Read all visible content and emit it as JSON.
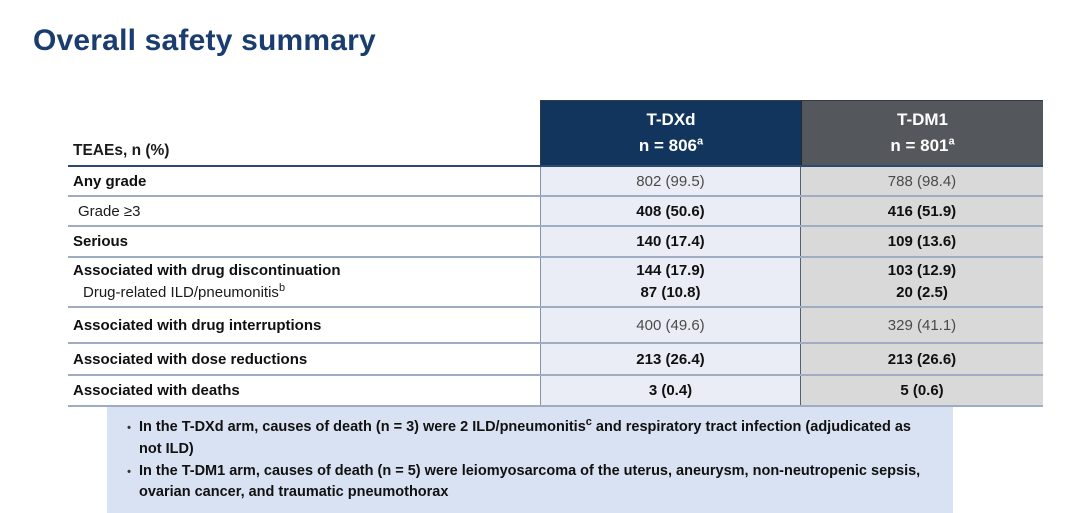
{
  "page": {
    "title": "Overall safety summary"
  },
  "table": {
    "corner_label": "TEAEs, n (%)",
    "columns": [
      {
        "name": "T-DXd",
        "n": "n = 806",
        "n_sup": "a"
      },
      {
        "name": "T-DM1",
        "n": "n = 801",
        "n_sup": "a"
      }
    ],
    "rows": [
      {
        "label": "Any grade",
        "values": [
          "802 (99.5)",
          "788 (98.4)"
        ]
      },
      {
        "label": "Grade ≥3",
        "values": [
          "408 (50.6)",
          "416 (51.9)"
        ]
      },
      {
        "label": "Serious",
        "values": [
          "140 (17.4)",
          "109 (13.6)"
        ]
      },
      {
        "label": "Associated with drug discontinuation",
        "values": [
          "144 (17.9)",
          "103 (12.9)"
        ],
        "sub_label": "Drug-related ILD/pneumonitis",
        "sub_label_sup": "b",
        "sub_values": [
          "87 (10.8)",
          "20 (2.5)"
        ]
      },
      {
        "label": "Associated with drug interruptions",
        "values": [
          "400 (49.6)",
          "329 (41.1)"
        ]
      },
      {
        "label": "Associated with dose reductions",
        "values": [
          "213 (26.4)",
          "213 (26.6)"
        ]
      },
      {
        "label": "Associated with deaths",
        "values": [
          "3 (0.4)",
          "5 (0.6)"
        ]
      }
    ]
  },
  "callout": {
    "marker": "•",
    "bullet1_pre": "In the T-DXd arm, causes of death (n = 3) were 2 ILD/pneumonitis",
    "bullet1_sup": "c",
    "bullet1_post": " and respiratory tract infection (adjudicated as not ILD)",
    "bullet2": "In the T-DM1 arm, causes of death (n = 5) were leiomyosarcoma of the uterus, aneurysm, non-neutropenic sepsis, ovarian cancer, and traumatic pneumothorax"
  },
  "colors": {
    "title_navy": "#1a3c6e",
    "header_tdxd_bg": "#12355d",
    "header_tdm1_bg": "#54575c",
    "col_tdxd_bg": "#eaedf6",
    "col_tdm1_bg": "#d9d9d9",
    "row_line": "#9fadc2",
    "callout_bg": "#d9e2f2"
  }
}
